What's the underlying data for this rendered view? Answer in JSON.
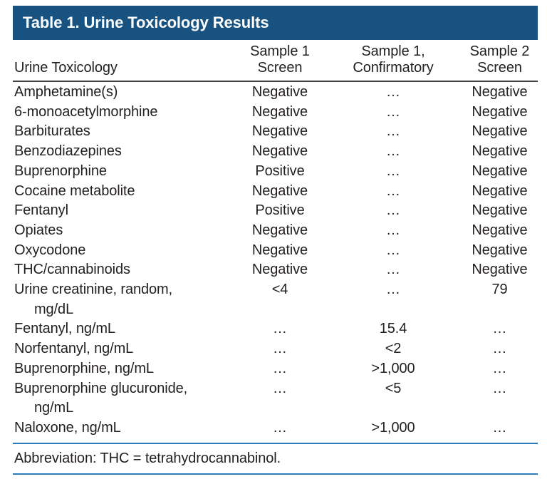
{
  "table": {
    "title": "Table 1. Urine Toxicology Results",
    "columns": [
      "Urine Toxicology",
      "Sample 1\nScreen",
      "Sample 1,\nConfirmatory",
      "Sample 2\nScreen"
    ],
    "rows": [
      {
        "label": "Amphetamine(s)",
        "c1": "Negative",
        "c2": "…",
        "c3": "Negative"
      },
      {
        "label": "6-monoacetylmorphine",
        "c1": "Negative",
        "c2": "…",
        "c3": "Negative"
      },
      {
        "label": "Barbiturates",
        "c1": "Negative",
        "c2": "…",
        "c3": "Negative"
      },
      {
        "label": "Benzodiazepines",
        "c1": "Negative",
        "c2": "…",
        "c3": "Negative"
      },
      {
        "label": "Buprenorphine",
        "c1": "Positive",
        "c2": "…",
        "c3": "Negative"
      },
      {
        "label": "Cocaine metabolite",
        "c1": "Negative",
        "c2": "…",
        "c3": "Negative"
      },
      {
        "label": "Fentanyl",
        "c1": "Positive",
        "c2": "…",
        "c3": "Negative"
      },
      {
        "label": "Opiates",
        "c1": "Negative",
        "c2": "…",
        "c3": "Negative"
      },
      {
        "label": "Oxycodone",
        "c1": "Negative",
        "c2": "…",
        "c3": "Negative"
      },
      {
        "label": "THC/cannabinoids",
        "c1": "Negative",
        "c2": "…",
        "c3": "Negative"
      },
      {
        "label": "Urine creatinine, random,",
        "label2": "mg/dL",
        "c1": "<4",
        "c2": "…",
        "c3": "79"
      },
      {
        "label": "Fentanyl, ng/mL",
        "c1": "…",
        "c2": "15.4",
        "c3": "…"
      },
      {
        "label": "Norfentanyl, ng/mL",
        "c1": "…",
        "c2": "<2",
        "c3": "…"
      },
      {
        "label": "Buprenorphine, ng/mL",
        "c1": "…",
        "c2": ">1,000",
        "c3": "…"
      },
      {
        "label": "Buprenorphine glucuronide,",
        "label2": "ng/mL",
        "c1": "…",
        "c2": "<5",
        "c3": "…"
      },
      {
        "label": "Naloxone, ng/mL",
        "c1": "…",
        "c2": ">1,000",
        "c3": "…"
      }
    ],
    "footnote": "Abbreviation: THC = tetrahydrocannabinol."
  },
  "colors": {
    "header_bar": "#175280",
    "rule_blue": "#2b7bb9",
    "rule_dark": "#404040",
    "text": "#231f20"
  }
}
